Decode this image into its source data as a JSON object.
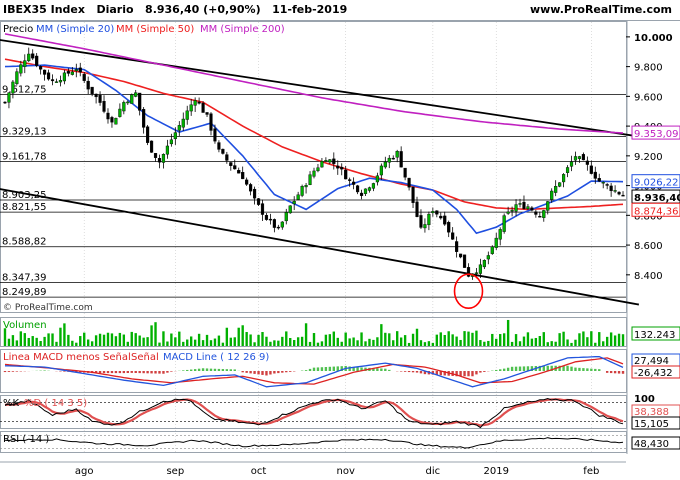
{
  "header": {
    "symbol": "IBEX35 Index",
    "period": "Diario",
    "last": "8.936,40 (+0,90%)",
    "date": "11-feb-2019",
    "brand": "www.ProRealTime.com"
  },
  "colors": {
    "up_candle": "#00b000",
    "down_candle": "#000000",
    "sma20": "#1f4fe0",
    "sma50": "#ee2020",
    "sma200": "#c020c0",
    "trendline": "#000000",
    "volume": "#00b000",
    "macd_line": "#2255dd",
    "macd_signal": "#dd2222",
    "stoch_k": "#000000",
    "stoch_d": "#e05050",
    "rsi": "#000000",
    "grid": "#c8c8c8",
    "circle": "#ff0000"
  },
  "chart_data": [
    {
      "type": "candlestick",
      "title": "Precio",
      "legend": [
        {
          "name": "MM (Simple 20)",
          "color": "#1f4fe0"
        },
        {
          "name": "MM (Simple 50)",
          "color": "#ee2020"
        },
        {
          "name": "MM (Simple 200)",
          "color": "#c020c0"
        }
      ],
      "ylim": [
        8150,
        10100
      ],
      "y_ticks": [
        "10.000",
        "9.800",
        "9.600",
        "9.400",
        "9.200",
        "9.000",
        "8.800",
        "8.600",
        "8.400"
      ],
      "x_ticks": [
        "ago",
        "sep",
        "oct",
        "nov",
        "dic",
        "2019",
        "feb"
      ],
      "watermark": "© ProRealTime.com",
      "level_labels": [
        "9.612,75",
        "9.329,13",
        "9.161,78",
        "8.903,25",
        "8.821,55",
        "8.588,82",
        "8.347,39",
        "8.249,89"
      ],
      "levels": [
        9612.75,
        9329.13,
        9161.78,
        8903.25,
        8821.55,
        8588.82,
        8347.39,
        8249.89
      ],
      "right_labels": [
        {
          "text": "9.353,09",
          "value": 9353.09,
          "color": "#c020c0"
        },
        {
          "text": "9.026,22",
          "value": 9026.22,
          "color": "#1f4fe0"
        },
        {
          "text": "8.936,40",
          "value": 8936.4,
          "color": "#000000"
        },
        {
          "text": "8.874,36",
          "value": 8874.36,
          "color": "#ee2020"
        }
      ],
      "close_anchors": [
        [
          0,
          9560
        ],
        [
          3,
          9760
        ],
        [
          6,
          9900
        ],
        [
          9,
          9780
        ],
        [
          12,
          9700
        ],
        [
          15,
          9740
        ],
        [
          18,
          9790
        ],
        [
          21,
          9660
        ],
        [
          24,
          9560
        ],
        [
          27,
          9420
        ],
        [
          30,
          9560
        ],
        [
          33,
          9620
        ],
        [
          36,
          9280
        ],
        [
          39,
          9160
        ],
        [
          42,
          9310
        ],
        [
          45,
          9450
        ],
        [
          48,
          9590
        ],
        [
          51,
          9460
        ],
        [
          54,
          9230
        ],
        [
          57,
          9140
        ],
        [
          60,
          9060
        ],
        [
          63,
          8900
        ],
        [
          66,
          8780
        ],
        [
          69,
          8700
        ],
        [
          72,
          8860
        ],
        [
          75,
          8980
        ],
        [
          78,
          9100
        ],
        [
          81,
          9190
        ],
        [
          84,
          9130
        ],
        [
          87,
          9030
        ],
        [
          90,
          8950
        ],
        [
          93,
          9030
        ],
        [
          96,
          9160
        ],
        [
          99,
          9220
        ],
        [
          102,
          8980
        ],
        [
          105,
          8700
        ],
        [
          108,
          8840
        ],
        [
          111,
          8760
        ],
        [
          114,
          8570
        ],
        [
          117,
          8400
        ],
        [
          120,
          8450
        ],
        [
          123,
          8570
        ],
        [
          126,
          8780
        ],
        [
          129,
          8870
        ],
        [
          132,
          8860
        ],
        [
          135,
          8800
        ],
        [
          138,
          8950
        ],
        [
          141,
          9070
        ],
        [
          144,
          9200
        ],
        [
          147,
          9130
        ],
        [
          150,
          9030
        ],
        [
          153,
          8980
        ],
        [
          156,
          8936.4
        ]
      ],
      "sma20_anchors": [
        [
          0,
          9800
        ],
        [
          10,
          9810
        ],
        [
          20,
          9780
        ],
        [
          28,
          9640
        ],
        [
          36,
          9470
        ],
        [
          44,
          9360
        ],
        [
          52,
          9420
        ],
        [
          60,
          9200
        ],
        [
          68,
          8940
        ],
        [
          76,
          8840
        ],
        [
          84,
          8980
        ],
        [
          92,
          9050
        ],
        [
          100,
          9020
        ],
        [
          108,
          8970
        ],
        [
          114,
          8840
        ],
        [
          119,
          8680
        ],
        [
          124,
          8720
        ],
        [
          130,
          8810
        ],
        [
          136,
          8870
        ],
        [
          142,
          8930
        ],
        [
          148,
          9030
        ],
        [
          156,
          9026.22
        ]
      ],
      "sma50_anchors": [
        [
          0,
          9850
        ],
        [
          10,
          9800
        ],
        [
          20,
          9760
        ],
        [
          30,
          9700
        ],
        [
          40,
          9620
        ],
        [
          50,
          9560
        ],
        [
          60,
          9400
        ],
        [
          70,
          9260
        ],
        [
          80,
          9160
        ],
        [
          90,
          9080
        ],
        [
          100,
          9010
        ],
        [
          108,
          8970
        ],
        [
          116,
          8890
        ],
        [
          124,
          8850
        ],
        [
          132,
          8840
        ],
        [
          140,
          8850
        ],
        [
          148,
          8860
        ],
        [
          156,
          8874.36
        ]
      ],
      "sma200_anchors": [
        [
          0,
          10020
        ],
        [
          20,
          9920
        ],
        [
          40,
          9810
        ],
        [
          60,
          9700
        ],
        [
          80,
          9590
        ],
        [
          100,
          9500
        ],
        [
          120,
          9430
        ],
        [
          140,
          9380
        ],
        [
          156,
          9353.09
        ]
      ],
      "trendlines": [
        [
          [
            -4,
            9990
          ],
          [
            160,
            9330
          ]
        ],
        [
          [
            -4,
            8990
          ],
          [
            160,
            8200
          ]
        ]
      ],
      "circle_center": [
        117,
        8290
      ]
    },
    {
      "type": "bar",
      "title": "Volumen",
      "value_label": "132.243",
      "values_seed": 7
    },
    {
      "type": "line",
      "title": "Linea MACD menos Señal",
      "legend": [
        {
          "name": "Linea MACD menos Señal",
          "color": "#dd2222"
        },
        {
          "name": "Señal",
          "color": "#dd2222"
        },
        {
          "name": "MACD Line ( 12 26 9)",
          "color": "#2255dd"
        }
      ],
      "value_labels": [
        "27,494",
        "-26,432"
      ],
      "macd_anchors": [
        [
          0,
          40
        ],
        [
          10,
          30
        ],
        [
          20,
          -20
        ],
        [
          30,
          -70
        ],
        [
          40,
          -110
        ],
        [
          50,
          -40
        ],
        [
          58,
          -30
        ],
        [
          66,
          -120
        ],
        [
          76,
          -90
        ],
        [
          86,
          20
        ],
        [
          96,
          60
        ],
        [
          104,
          20
        ],
        [
          112,
          -60
        ],
        [
          118,
          -120
        ],
        [
          126,
          -60
        ],
        [
          134,
          20
        ],
        [
          142,
          100
        ],
        [
          150,
          110
        ],
        [
          156,
          27.494
        ]
      ],
      "signal_anchors": [
        [
          0,
          50
        ],
        [
          12,
          20
        ],
        [
          22,
          -10
        ],
        [
          32,
          -60
        ],
        [
          42,
          -90
        ],
        [
          52,
          -60
        ],
        [
          60,
          -40
        ],
        [
          68,
          -90
        ],
        [
          78,
          -100
        ],
        [
          88,
          -10
        ],
        [
          98,
          50
        ],
        [
          106,
          30
        ],
        [
          114,
          -30
        ],
        [
          120,
          -90
        ],
        [
          128,
          -80
        ],
        [
          136,
          -10
        ],
        [
          144,
          70
        ],
        [
          152,
          100
        ],
        [
          156,
          53.926
        ]
      ],
      "ylim": [
        -160,
        160
      ]
    },
    {
      "type": "line",
      "title": "%K",
      "legend": [
        {
          "name": "%K",
          "color": "#000000"
        },
        {
          "name": "%D ( 14 3 5)",
          "color": "#e05050"
        }
      ],
      "y_ticks": [
        "100",
        "0"
      ],
      "value_labels": [
        "38,388",
        "15,105"
      ],
      "k_anchors": [
        [
          0,
          70
        ],
        [
          6,
          85
        ],
        [
          12,
          40
        ],
        [
          18,
          60
        ],
        [
          22,
          20
        ],
        [
          28,
          10
        ],
        [
          34,
          50
        ],
        [
          40,
          85
        ],
        [
          46,
          90
        ],
        [
          52,
          30
        ],
        [
          58,
          20
        ],
        [
          64,
          10
        ],
        [
          70,
          40
        ],
        [
          78,
          80
        ],
        [
          84,
          90
        ],
        [
          90,
          60
        ],
        [
          96,
          85
        ],
        [
          102,
          20
        ],
        [
          108,
          10
        ],
        [
          114,
          20
        ],
        [
          120,
          5
        ],
        [
          126,
          60
        ],
        [
          132,
          80
        ],
        [
          138,
          90
        ],
        [
          144,
          85
        ],
        [
          150,
          40
        ],
        [
          156,
          15.105
        ]
      ],
      "ylim": [
        0,
        100
      ]
    },
    {
      "type": "line",
      "title": "RSI ( 14 )",
      "value_label": "48,430",
      "rsi_anchors": [
        [
          0,
          55
        ],
        [
          12,
          58
        ],
        [
          24,
          45
        ],
        [
          36,
          40
        ],
        [
          48,
          55
        ],
        [
          60,
          38
        ],
        [
          72,
          42
        ],
        [
          84,
          55
        ],
        [
          96,
          58
        ],
        [
          106,
          40
        ],
        [
          116,
          33
        ],
        [
          126,
          55
        ],
        [
          138,
          62
        ],
        [
          148,
          56
        ],
        [
          156,
          48.43
        ]
      ],
      "ylim": [
        20,
        80
      ]
    }
  ]
}
